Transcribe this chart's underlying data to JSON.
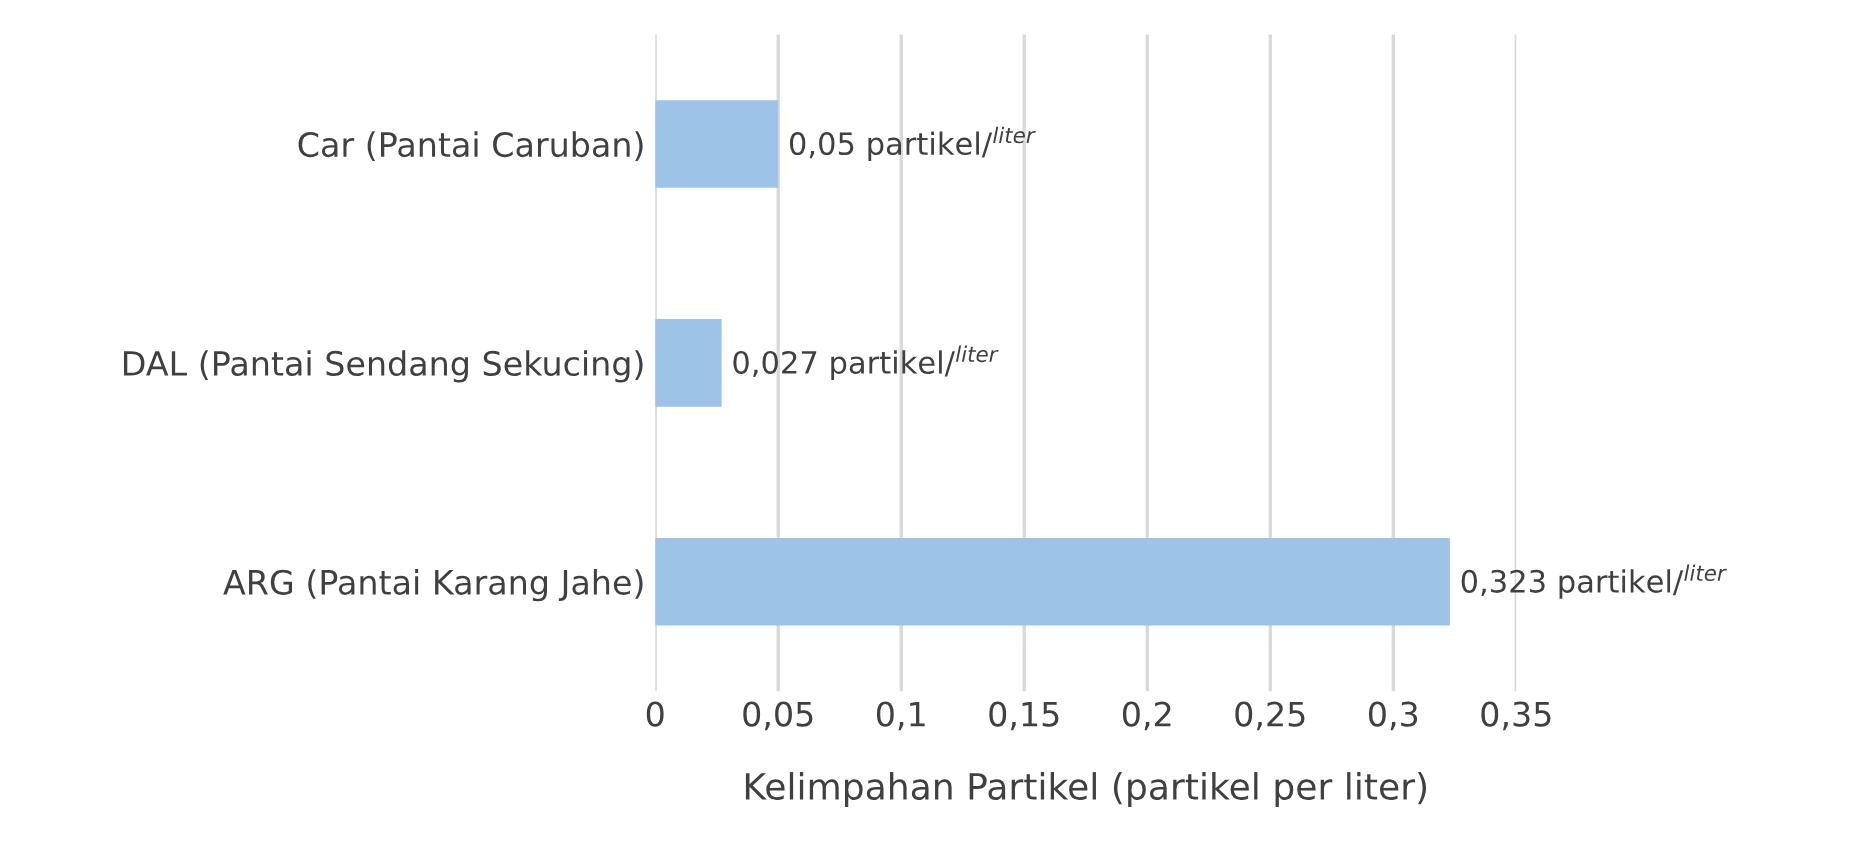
{
  "chart_data": {
    "type": "bar",
    "orientation": "horizontal",
    "xlabel": "Kelimpahan Partikel (partikel per liter)",
    "categories": [
      "Car (Pantai Caruban)",
      "DAL (Pantai Sendang Sekucing)",
      "ARG (Pantai Karang Jahe)"
    ],
    "values": [
      0.05,
      0.027,
      0.323
    ],
    "value_labels": [
      "0,05 partikel/$^{liter}$",
      "0,027 partikel/$^{liter}$",
      "0,323 partikel/$^{liter}$"
    ],
    "color": "#9dc3e6",
    "xlim": [
      0,
      0.35
    ],
    "xticks": [
      0,
      {
        "value": 0.05,
        "label": "0,05"
      },
      {
        "value": 0.1,
        "label": "0,1"
      },
      {
        "value": 0.15,
        "label": "0,15"
      },
      {
        "value": 0.2,
        "label": "0,2"
      },
      {
        "value": 0.25,
        "label": "0,25"
      },
      {
        "value": 0.3,
        "label": "0,3"
      },
      {
        "value": 0.35,
        "label": "0,35"
      }
    ],
    "grid": "x",
    "legend": false
  }
}
